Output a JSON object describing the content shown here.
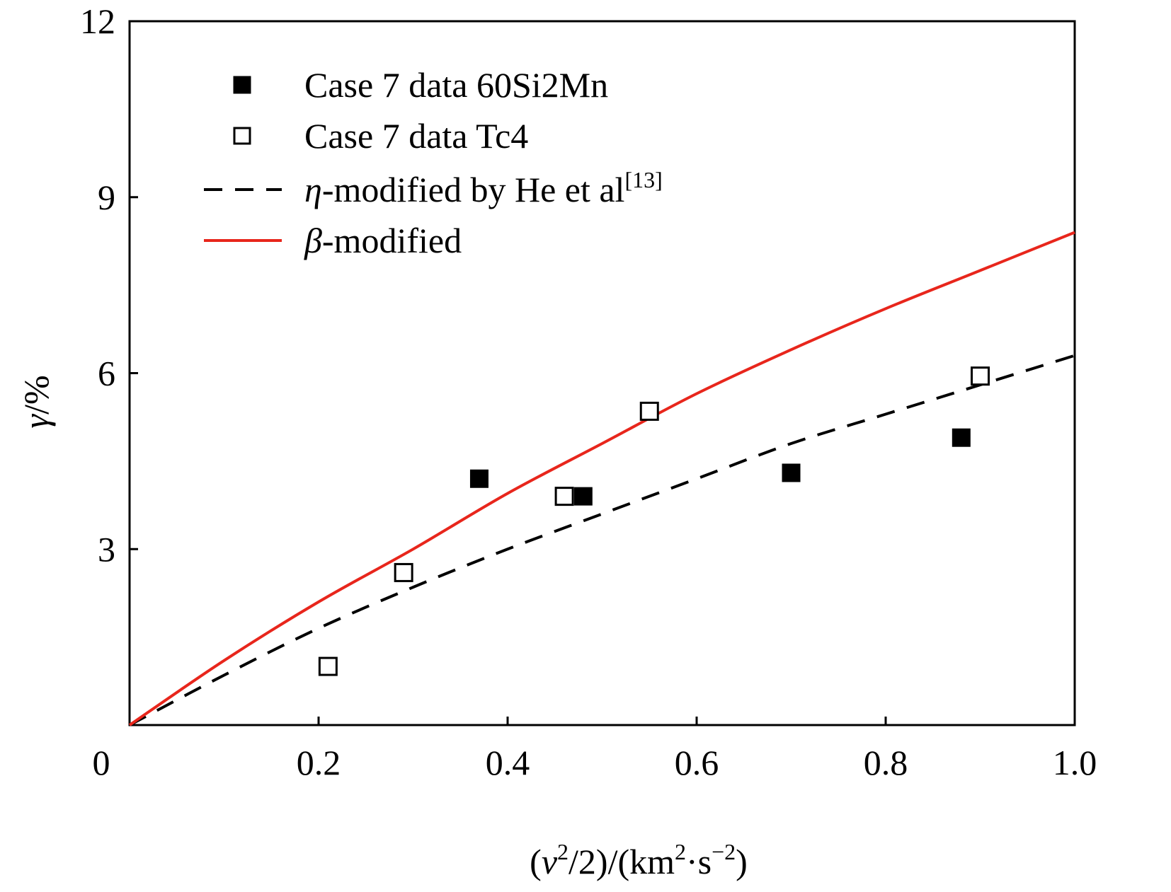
{
  "chart_data": {
    "type": "scatter",
    "xlabel": {
      "pre": "(",
      "v": "v",
      "sup1": "2",
      "mid": "/2)/(km",
      "sup2": "2",
      "mid2": "·s",
      "sup3": "−2",
      "post": ")"
    },
    "ylabel": {
      "sym": "γ",
      "unit": "/%"
    },
    "xlim": [
      0,
      1.0
    ],
    "ylim": [
      0,
      12
    ],
    "x_ticks": [
      {
        "value": 0,
        "label": "0"
      },
      {
        "value": 0.2,
        "label": "0.2"
      },
      {
        "value": 0.4,
        "label": "0.4"
      },
      {
        "value": 0.6,
        "label": "0.6"
      },
      {
        "value": 0.8,
        "label": "0.8"
      },
      {
        "value": 1.0,
        "label": "1.0"
      }
    ],
    "y_ticks": [
      {
        "value": 3,
        "label": "3"
      },
      {
        "value": 6,
        "label": "6"
      },
      {
        "value": 9,
        "label": "9"
      },
      {
        "value": 12,
        "label": "12"
      }
    ],
    "grid": false,
    "legend_position": "top-left",
    "series": [
      {
        "name": "Case 7 data 60Si2Mn",
        "kind": "scatter",
        "marker": "filled-square",
        "color": "#000000",
        "x": [
          0.37,
          0.48,
          0.7,
          0.88
        ],
        "y": [
          4.2,
          3.9,
          4.3,
          4.9
        ]
      },
      {
        "name": "Case 7 data Tc4",
        "kind": "scatter",
        "marker": "open-square",
        "color": "#000000",
        "x": [
          0.21,
          0.29,
          0.46,
          0.55,
          0.9
        ],
        "y": [
          1.0,
          2.6,
          3.9,
          5.35,
          5.95
        ]
      },
      {
        "name": "η-modified by He et al[13]",
        "name_parts": {
          "sym": "η",
          "text": "-modified by He et al",
          "ref": "[13]"
        },
        "kind": "line",
        "style": "dashed",
        "color": "#000000",
        "x": [
          0,
          0.1,
          0.2,
          0.3,
          0.4,
          0.5,
          0.6,
          0.7,
          0.8,
          0.9,
          1.0
        ],
        "y": [
          0,
          0.85,
          1.65,
          2.35,
          3.0,
          3.6,
          4.2,
          4.8,
          5.3,
          5.8,
          6.3
        ]
      },
      {
        "name": "β-modified",
        "name_parts": {
          "sym": "β",
          "text": "-modified",
          "ref": ""
        },
        "kind": "line",
        "style": "solid",
        "color": "#e8261c",
        "x": [
          0,
          0.1,
          0.2,
          0.3,
          0.4,
          0.5,
          0.6,
          0.7,
          0.8,
          0.9,
          1.0
        ],
        "y": [
          0,
          1.1,
          2.1,
          3.0,
          3.95,
          4.8,
          5.65,
          6.4,
          7.1,
          7.75,
          8.4
        ]
      }
    ]
  }
}
